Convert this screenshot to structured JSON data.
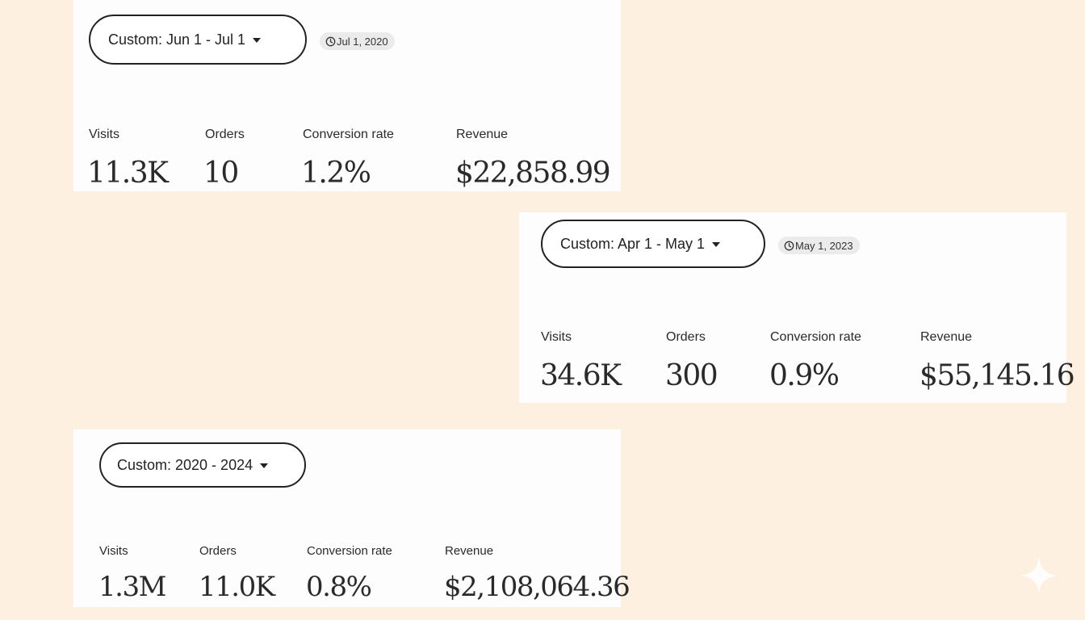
{
  "panels": [
    {
      "range_label": "Custom: Jun 1 - Jul 1",
      "date_badge": "Jul 1, 2020",
      "metrics": [
        {
          "label": "Visits",
          "value": "11.3K"
        },
        {
          "label": "Orders",
          "value": "10"
        },
        {
          "label": "Conversion rate",
          "value": "1.2%"
        },
        {
          "label": "Revenue",
          "value": "$22,858.99"
        }
      ]
    },
    {
      "range_label": "Custom: Apr 1 - May 1",
      "date_badge": "May 1, 2023",
      "metrics": [
        {
          "label": "Visits",
          "value": "34.6K"
        },
        {
          "label": "Orders",
          "value": "300"
        },
        {
          "label": "Conversion rate",
          "value": "0.9%"
        },
        {
          "label": "Revenue",
          "value": "$55,145.16"
        }
      ]
    },
    {
      "range_label": "Custom: 2020 - 2024",
      "metrics": [
        {
          "label": "Visits",
          "value": "1.3M"
        },
        {
          "label": "Orders",
          "value": "11.0K"
        },
        {
          "label": "Conversion rate",
          "value": "0.8%"
        },
        {
          "label": "Revenue",
          "value": "$2,108,064.36"
        }
      ]
    }
  ],
  "icons": {
    "badge_icon": "clock-icon",
    "dropdown_icon": "caret-down-icon",
    "corner_icon": "sparkle-icon"
  },
  "colors": {
    "background": "#fdf0e1",
    "panel": "#fdfdfd",
    "text": "#222222",
    "badge": "#ebebeb"
  }
}
